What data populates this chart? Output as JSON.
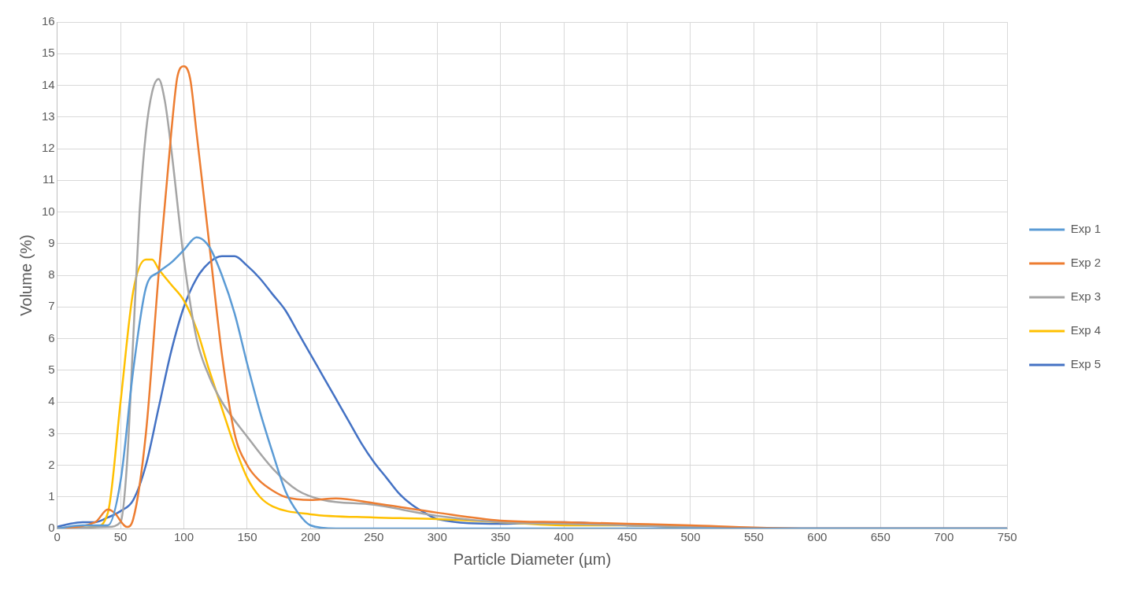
{
  "chart_data": {
    "type": "line",
    "xlabel": "Particle Diameter (µm)",
    "ylabel": "Volume (%)",
    "xlim": [
      0,
      750
    ],
    "xticks": [
      0,
      50,
      100,
      150,
      200,
      250,
      300,
      350,
      400,
      450,
      500,
      550,
      600,
      650,
      700,
      750
    ],
    "ylim": [
      0,
      16
    ],
    "yticks": [
      0,
      1,
      2,
      3,
      4,
      5,
      6,
      7,
      8,
      9,
      10,
      11,
      12,
      13,
      14,
      15,
      16
    ],
    "grid": true,
    "legend": "right",
    "marker": "none",
    "line_style": "solid",
    "series": [
      {
        "name": "Exp 1",
        "color": "#5b9bd5",
        "x": [
          0,
          20,
          40,
          50,
          60,
          70,
          80,
          90,
          100,
          110,
          120,
          130,
          140,
          150,
          160,
          170,
          180,
          190,
          200,
          220,
          750
        ],
        "values": [
          0,
          0.1,
          0.1,
          1.5,
          5,
          7.6,
          8.1,
          8.4,
          8.8,
          9.2,
          8.9,
          8,
          6.8,
          5.2,
          3.7,
          2.4,
          1.2,
          0.5,
          0.1,
          0,
          0
        ]
      },
      {
        "name": "Exp 2",
        "color": "#ed7d31",
        "x": [
          0,
          30,
          40,
          45,
          55,
          60,
          70,
          80,
          90,
          95,
          100,
          105,
          110,
          120,
          130,
          140,
          150,
          160,
          170,
          180,
          200,
          220,
          250,
          300,
          350,
          400,
          450,
          500,
          550,
          600,
          750
        ],
        "values": [
          0,
          0.2,
          0.6,
          0.5,
          0.05,
          0.3,
          3,
          8,
          12.5,
          14.3,
          14.6,
          14.2,
          12.5,
          9,
          5.5,
          3,
          2,
          1.5,
          1.2,
          1,
          0.9,
          0.95,
          0.8,
          0.5,
          0.25,
          0.2,
          0.15,
          0.1,
          0.03,
          0,
          0
        ]
      },
      {
        "name": "Exp 3",
        "color": "#a5a5a5",
        "x": [
          0,
          40,
          50,
          55,
          60,
          65,
          70,
          75,
          80,
          85,
          90,
          100,
          110,
          120,
          130,
          150,
          170,
          190,
          210,
          250,
          300,
          350,
          400,
          450,
          500,
          550,
          750
        ],
        "values": [
          0,
          0.05,
          0.2,
          2,
          6,
          10,
          12.5,
          13.8,
          14.2,
          13.5,
          12,
          8.5,
          6,
          4.8,
          4,
          2.9,
          1.9,
          1.2,
          0.9,
          0.75,
          0.4,
          0.2,
          0.15,
          0.1,
          0.05,
          0,
          0
        ]
      },
      {
        "name": "Exp 4",
        "color": "#ffc000",
        "x": [
          0,
          30,
          40,
          50,
          60,
          70,
          75,
          80,
          90,
          100,
          110,
          120,
          130,
          140,
          150,
          160,
          170,
          200,
          250,
          300,
          350,
          400,
          450,
          500
        ],
        "values": [
          0,
          0.05,
          0.5,
          4,
          7.5,
          8.5,
          8.5,
          8.2,
          7.7,
          7.2,
          6.3,
          5,
          3.8,
          2.6,
          1.6,
          1,
          0.7,
          0.45,
          0.35,
          0.3,
          0.2,
          0.1,
          0.1,
          0.05
        ]
      },
      {
        "name": "Exp 5",
        "color": "#4472c4",
        "x": [
          0,
          10,
          20,
          30,
          40,
          50,
          60,
          70,
          80,
          90,
          100,
          110,
          120,
          130,
          140,
          150,
          160,
          170,
          180,
          190,
          200,
          210,
          220,
          230,
          240,
          250,
          260,
          270,
          280,
          290,
          300,
          350,
          400,
          450,
          500,
          550,
          750
        ],
        "values": [
          0.05,
          0.15,
          0.2,
          0.2,
          0.35,
          0.55,
          0.9,
          2,
          3.8,
          5.6,
          7,
          7.9,
          8.4,
          8.6,
          8.6,
          8.3,
          7.9,
          7.4,
          6.9,
          6.2,
          5.5,
          4.8,
          4.1,
          3.4,
          2.7,
          2.1,
          1.6,
          1.1,
          0.75,
          0.5,
          0.3,
          0.15,
          0.2,
          0.1,
          0.05,
          0,
          0
        ]
      }
    ]
  }
}
